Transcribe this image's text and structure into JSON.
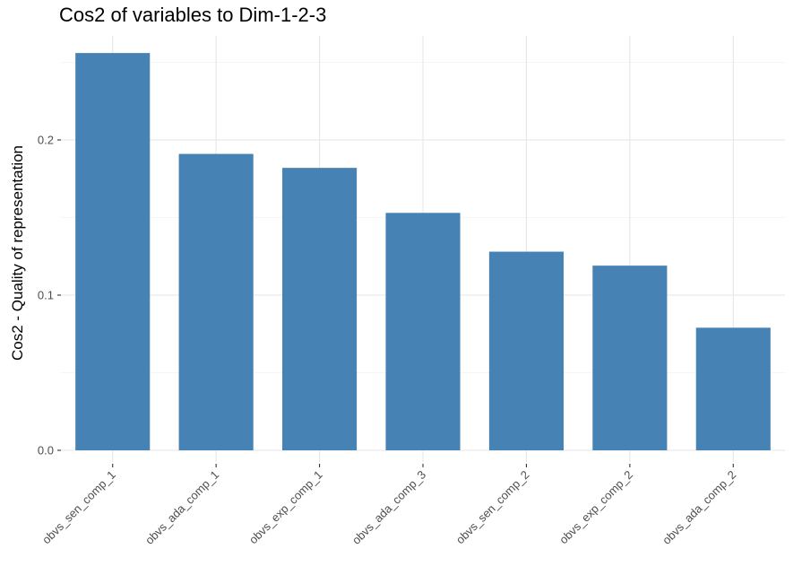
{
  "chart_data": {
    "type": "bar",
    "title": "Cos2 of variables to Dim-1-2-3",
    "xlabel": "",
    "ylabel": "Cos2 - Quality of representation",
    "categories": [
      "obvs_sen_comp_1",
      "obvs_ada_comp_1",
      "obvs_exp_comp_1",
      "obvs_ada_comp_3",
      "obvs_sen_comp_2",
      "obvs_exp_comp_2",
      "obvs_ada_comp_2"
    ],
    "values": [
      0.256,
      0.191,
      0.182,
      0.153,
      0.128,
      0.119,
      0.079
    ],
    "yticks": [
      "0.0",
      "0.1",
      "0.2"
    ],
    "ylim": [
      0,
      0.27
    ],
    "bar_color": "#4682b4",
    "grid": true,
    "legend": "none"
  }
}
